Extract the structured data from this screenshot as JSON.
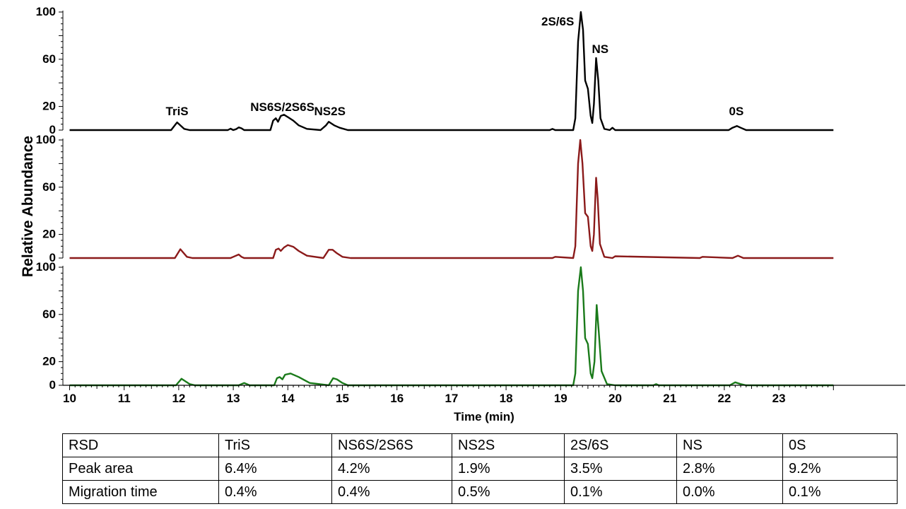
{
  "chart_data": {
    "type": "line",
    "xlabel": "Time (min)",
    "ylabel": "Relative Abundance",
    "xlim": [
      10,
      24
    ],
    "x_ticks": [
      "10",
      "11",
      "12",
      "13",
      "14",
      "15",
      "16",
      "17",
      "18",
      "19",
      "20",
      "21",
      "22",
      "23"
    ],
    "ylim": [
      0,
      100
    ],
    "y_ticks": [
      "0",
      "20",
      "60",
      "100"
    ],
    "grid": false,
    "legend": "none",
    "peak_labels": [
      {
        "text": "TriS",
        "x": 11.97
      },
      {
        "text": "NS6S/2S6S",
        "x": 13.9
      },
      {
        "text": "NS2S",
        "x": 14.77
      },
      {
        "text": "2S/6S",
        "x": 19.35
      },
      {
        "text": "NS",
        "x": 19.65
      },
      {
        "text": "0S",
        "x": 22.22
      }
    ],
    "series": [
      {
        "color": "#000000",
        "x": [
          10,
          11.86,
          11.97,
          12.1,
          12.2,
          12.9,
          12.95,
          13.0,
          13.05,
          13.1,
          13.15,
          13.2,
          13.68,
          13.73,
          13.78,
          13.82,
          13.87,
          13.93,
          14.0,
          14.1,
          14.2,
          14.35,
          14.6,
          14.7,
          14.75,
          14.85,
          14.95,
          15.1,
          18.8,
          18.85,
          18.9,
          19.23,
          19.27,
          19.32,
          19.37,
          19.41,
          19.45,
          19.5,
          19.55,
          19.58,
          19.61,
          19.65,
          19.69,
          19.73,
          19.8,
          19.9,
          19.95,
          20.0,
          22.08,
          22.15,
          22.23,
          22.3,
          22.4,
          24
        ],
        "y": [
          0,
          0,
          6.5,
          1,
          0,
          0,
          1.2,
          0,
          0.8,
          2.3,
          1.5,
          0,
          0,
          8,
          10,
          7,
          12,
          13,
          11,
          8,
          4,
          1,
          0,
          4,
          7,
          4,
          2,
          0,
          0,
          1,
          0,
          0,
          10,
          75,
          100,
          85,
          42,
          35,
          12,
          6,
          22,
          61,
          42,
          10,
          1,
          0,
          2,
          0,
          0,
          2,
          3.5,
          2,
          0,
          0
        ]
      },
      {
        "color": "#8b1a1a",
        "x": [
          10,
          11.93,
          12.03,
          12.15,
          12.25,
          12.95,
          13.0,
          13.1,
          13.15,
          13.2,
          13.73,
          13.78,
          13.83,
          13.87,
          13.93,
          14.0,
          14.1,
          14.2,
          14.35,
          14.65,
          14.75,
          14.82,
          14.9,
          15.0,
          15.15,
          18.85,
          18.9,
          19.23,
          19.27,
          19.32,
          19.36,
          19.4,
          19.45,
          19.5,
          19.55,
          19.58,
          19.61,
          19.65,
          19.68,
          19.72,
          19.8,
          19.95,
          20.0,
          21.55,
          21.6,
          22.15,
          22.25,
          22.35,
          24
        ],
        "y": [
          0,
          0,
          7.5,
          1,
          0,
          0,
          1,
          3,
          1,
          0,
          0,
          7,
          8,
          6,
          9,
          11,
          9.5,
          6,
          2,
          0,
          7,
          7,
          4,
          1,
          0,
          0,
          1,
          0,
          10,
          80,
          100,
          80,
          38,
          35,
          10,
          6,
          20,
          68,
          50,
          12,
          1,
          0,
          1.5,
          0,
          1,
          0,
          2,
          0,
          0
        ]
      },
      {
        "color": "#1a7a1a",
        "x": [
          10,
          11.95,
          12.05,
          12.2,
          12.3,
          13.1,
          13.2,
          13.3,
          13.75,
          13.8,
          13.85,
          13.9,
          13.95,
          14.05,
          14.2,
          14.4,
          14.75,
          14.83,
          14.9,
          15.0,
          15.1,
          19.23,
          19.27,
          19.32,
          19.37,
          19.41,
          19.45,
          19.5,
          19.55,
          19.58,
          19.62,
          19.66,
          19.7,
          19.75,
          19.85,
          20.0,
          20.7,
          20.75,
          20.8,
          22.1,
          22.2,
          22.3,
          22.4,
          24
        ],
        "y": [
          0,
          0,
          5.5,
          1,
          0,
          0,
          2,
          0,
          0,
          6,
          7,
          5,
          9,
          10,
          7,
          2,
          0,
          6,
          5,
          2,
          0,
          0,
          10,
          80,
          100,
          80,
          40,
          35,
          10,
          6,
          20,
          68,
          45,
          12,
          1,
          0,
          0,
          1,
          0,
          0,
          2.5,
          1,
          0,
          0
        ]
      }
    ]
  },
  "table": {
    "header": [
      "RSD",
      "TriS",
      "NS6S/2S6S",
      "NS2S",
      "2S/6S",
      "NS",
      "0S"
    ],
    "rows": [
      [
        "Peak area",
        "6.4%",
        "4.2%",
        "1.9%",
        "3.5%",
        "2.8%",
        "9.2%"
      ],
      [
        "Migration time",
        "0.4%",
        "0.4%",
        "0.5%",
        "0.1%",
        "0.0%",
        "0.1%"
      ]
    ]
  }
}
